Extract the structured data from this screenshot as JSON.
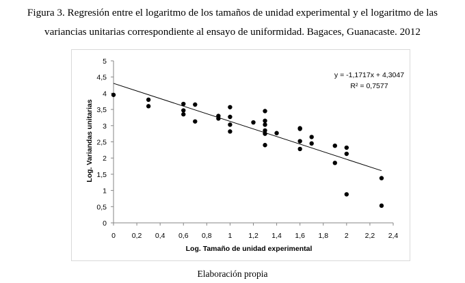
{
  "caption": {
    "line1": "Figura 3. Regresión entre el logaritmo de los tamaños de unidad experimental y el logaritmo de las",
    "line2": "variancias unitarias correspondiente al ensayo de uniformidad. Bagaces, Guanacaste. 2012"
  },
  "footer": "Elaboración propia",
  "chart_data": {
    "type": "scatter",
    "xlabel": "Log. Tamaño de unidad experimental",
    "ylabel": "Log. Variandas unitarias",
    "xlim": [
      0,
      2.4
    ],
    "ylim": [
      0,
      5
    ],
    "x_ticks": [
      "0",
      "0,2",
      "0,4",
      "0,6",
      "0,8",
      "1",
      "1,2",
      "1,4",
      "1,6",
      "1,8",
      "2",
      "2,2",
      "2,4"
    ],
    "y_ticks": [
      "0",
      "0,5",
      "1",
      "1,5",
      "2",
      "2,5",
      "3",
      "3,5",
      "4",
      "4,5",
      "5"
    ],
    "grid": false,
    "points": [
      {
        "x": 0,
        "y": 3.95
      },
      {
        "x": 0.3,
        "y": 3.8
      },
      {
        "x": 0.3,
        "y": 3.6
      },
      {
        "x": 0.6,
        "y": 3.67
      },
      {
        "x": 0.6,
        "y": 3.47
      },
      {
        "x": 0.6,
        "y": 3.35
      },
      {
        "x": 0.7,
        "y": 3.65
      },
      {
        "x": 0.7,
        "y": 3.13
      },
      {
        "x": 0.9,
        "y": 3.3
      },
      {
        "x": 0.9,
        "y": 3.22
      },
      {
        "x": 1.0,
        "y": 3.57
      },
      {
        "x": 1.0,
        "y": 3.27
      },
      {
        "x": 1.0,
        "y": 3.03
      },
      {
        "x": 1.0,
        "y": 2.82
      },
      {
        "x": 1.2,
        "y": 3.1
      },
      {
        "x": 1.3,
        "y": 3.45
      },
      {
        "x": 1.3,
        "y": 3.15
      },
      {
        "x": 1.3,
        "y": 3.03
      },
      {
        "x": 1.3,
        "y": 2.85
      },
      {
        "x": 1.3,
        "y": 2.75
      },
      {
        "x": 1.3,
        "y": 2.4
      },
      {
        "x": 1.4,
        "y": 2.77
      },
      {
        "x": 1.6,
        "y": 2.92
      },
      {
        "x": 1.6,
        "y": 2.9
      },
      {
        "x": 1.6,
        "y": 2.52
      },
      {
        "x": 1.6,
        "y": 2.28
      },
      {
        "x": 1.7,
        "y": 2.65
      },
      {
        "x": 1.7,
        "y": 2.45
      },
      {
        "x": 1.9,
        "y": 2.38
      },
      {
        "x": 1.9,
        "y": 1.85
      },
      {
        "x": 2.0,
        "y": 2.32
      },
      {
        "x": 2.0,
        "y": 2.13
      },
      {
        "x": 2.0,
        "y": 0.88
      },
      {
        "x": 2.3,
        "y": 1.38
      },
      {
        "x": 2.3,
        "y": 0.53
      }
    ],
    "trendline": {
      "slope": -1.1717,
      "intercept": 4.3047,
      "x_range": [
        0,
        2.3
      ]
    },
    "annotations": {
      "equation": "y = -1,1717x + 4,3047",
      "r2": "R² = 0,7577"
    }
  }
}
